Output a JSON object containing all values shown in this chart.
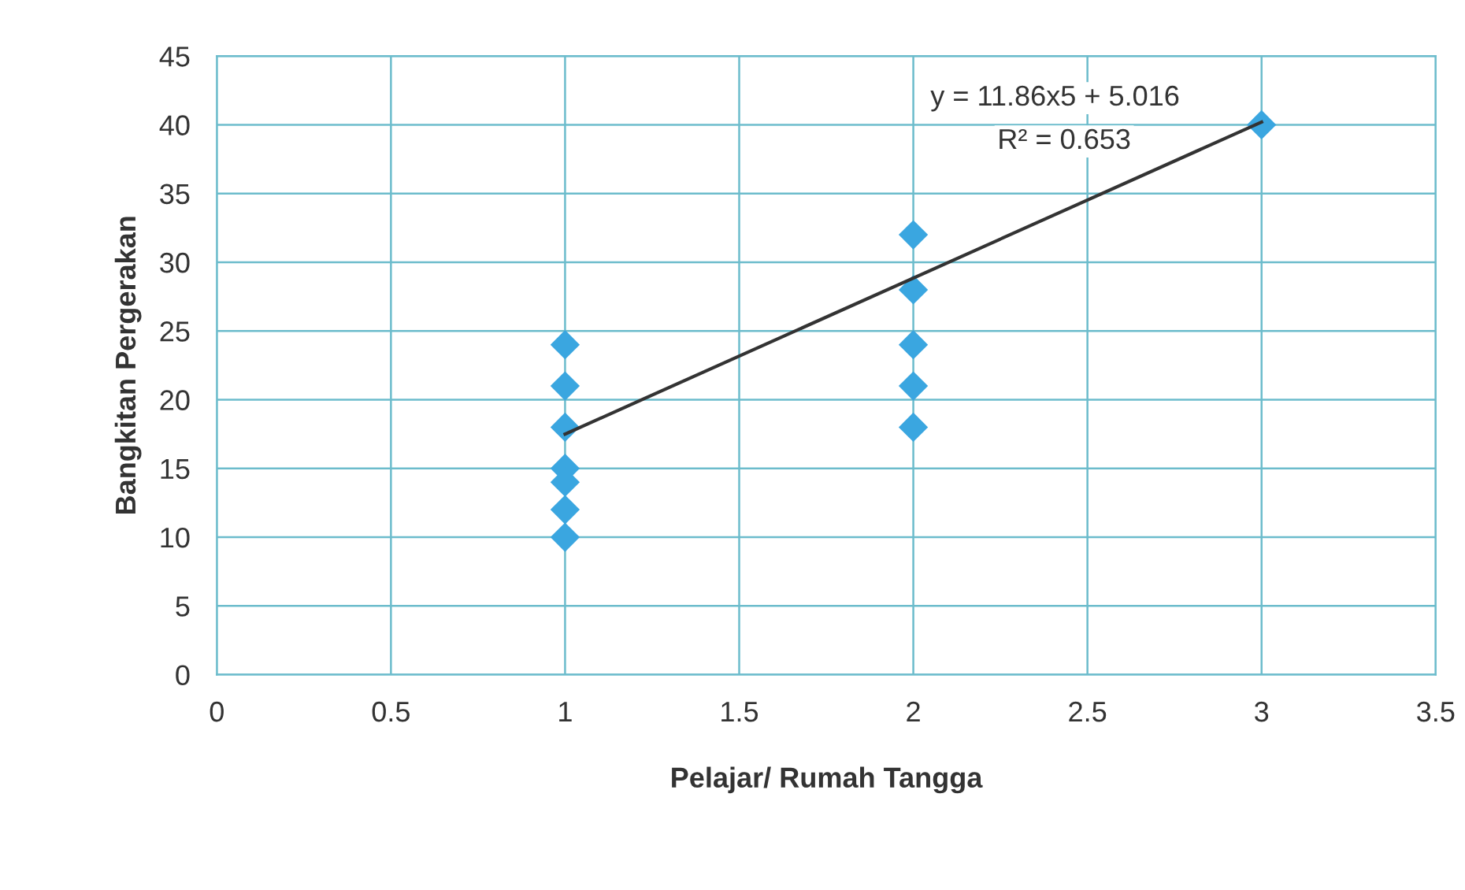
{
  "chart_data": {
    "type": "scatter",
    "xlabel": "Pelajar/ Rumah Tangga",
    "ylabel": "Bangkitan Pergerakan",
    "series": [
      {
        "color": "#3aa6e0",
        "marker": "diamond",
        "x": [
          1,
          1,
          1,
          1,
          1,
          1,
          1,
          2,
          2,
          2,
          2,
          2,
          3
        ],
        "values": [
          24,
          21,
          18,
          15,
          14,
          12,
          10,
          32,
          28,
          24,
          21,
          18,
          40
        ]
      },
      {
        "type": "line",
        "color": "#333333",
        "marker": "none",
        "line_style": "solid",
        "x": [
          1,
          3
        ],
        "values": [
          17.5,
          40.2
        ]
      }
    ],
    "annotations": [
      "y = 11.86x5 + 5.016",
      "R² = 0.653"
    ],
    "xlim": [
      0,
      3.5
    ],
    "xticks": [
      0,
      0.5,
      1,
      1.5,
      2,
      2.5,
      3,
      3.5
    ],
    "ylim": [
      0,
      45
    ],
    "yticks": [
      0,
      5,
      10,
      15,
      20,
      25,
      30,
      35,
      40,
      45
    ],
    "grid": true,
    "legend": false
  }
}
